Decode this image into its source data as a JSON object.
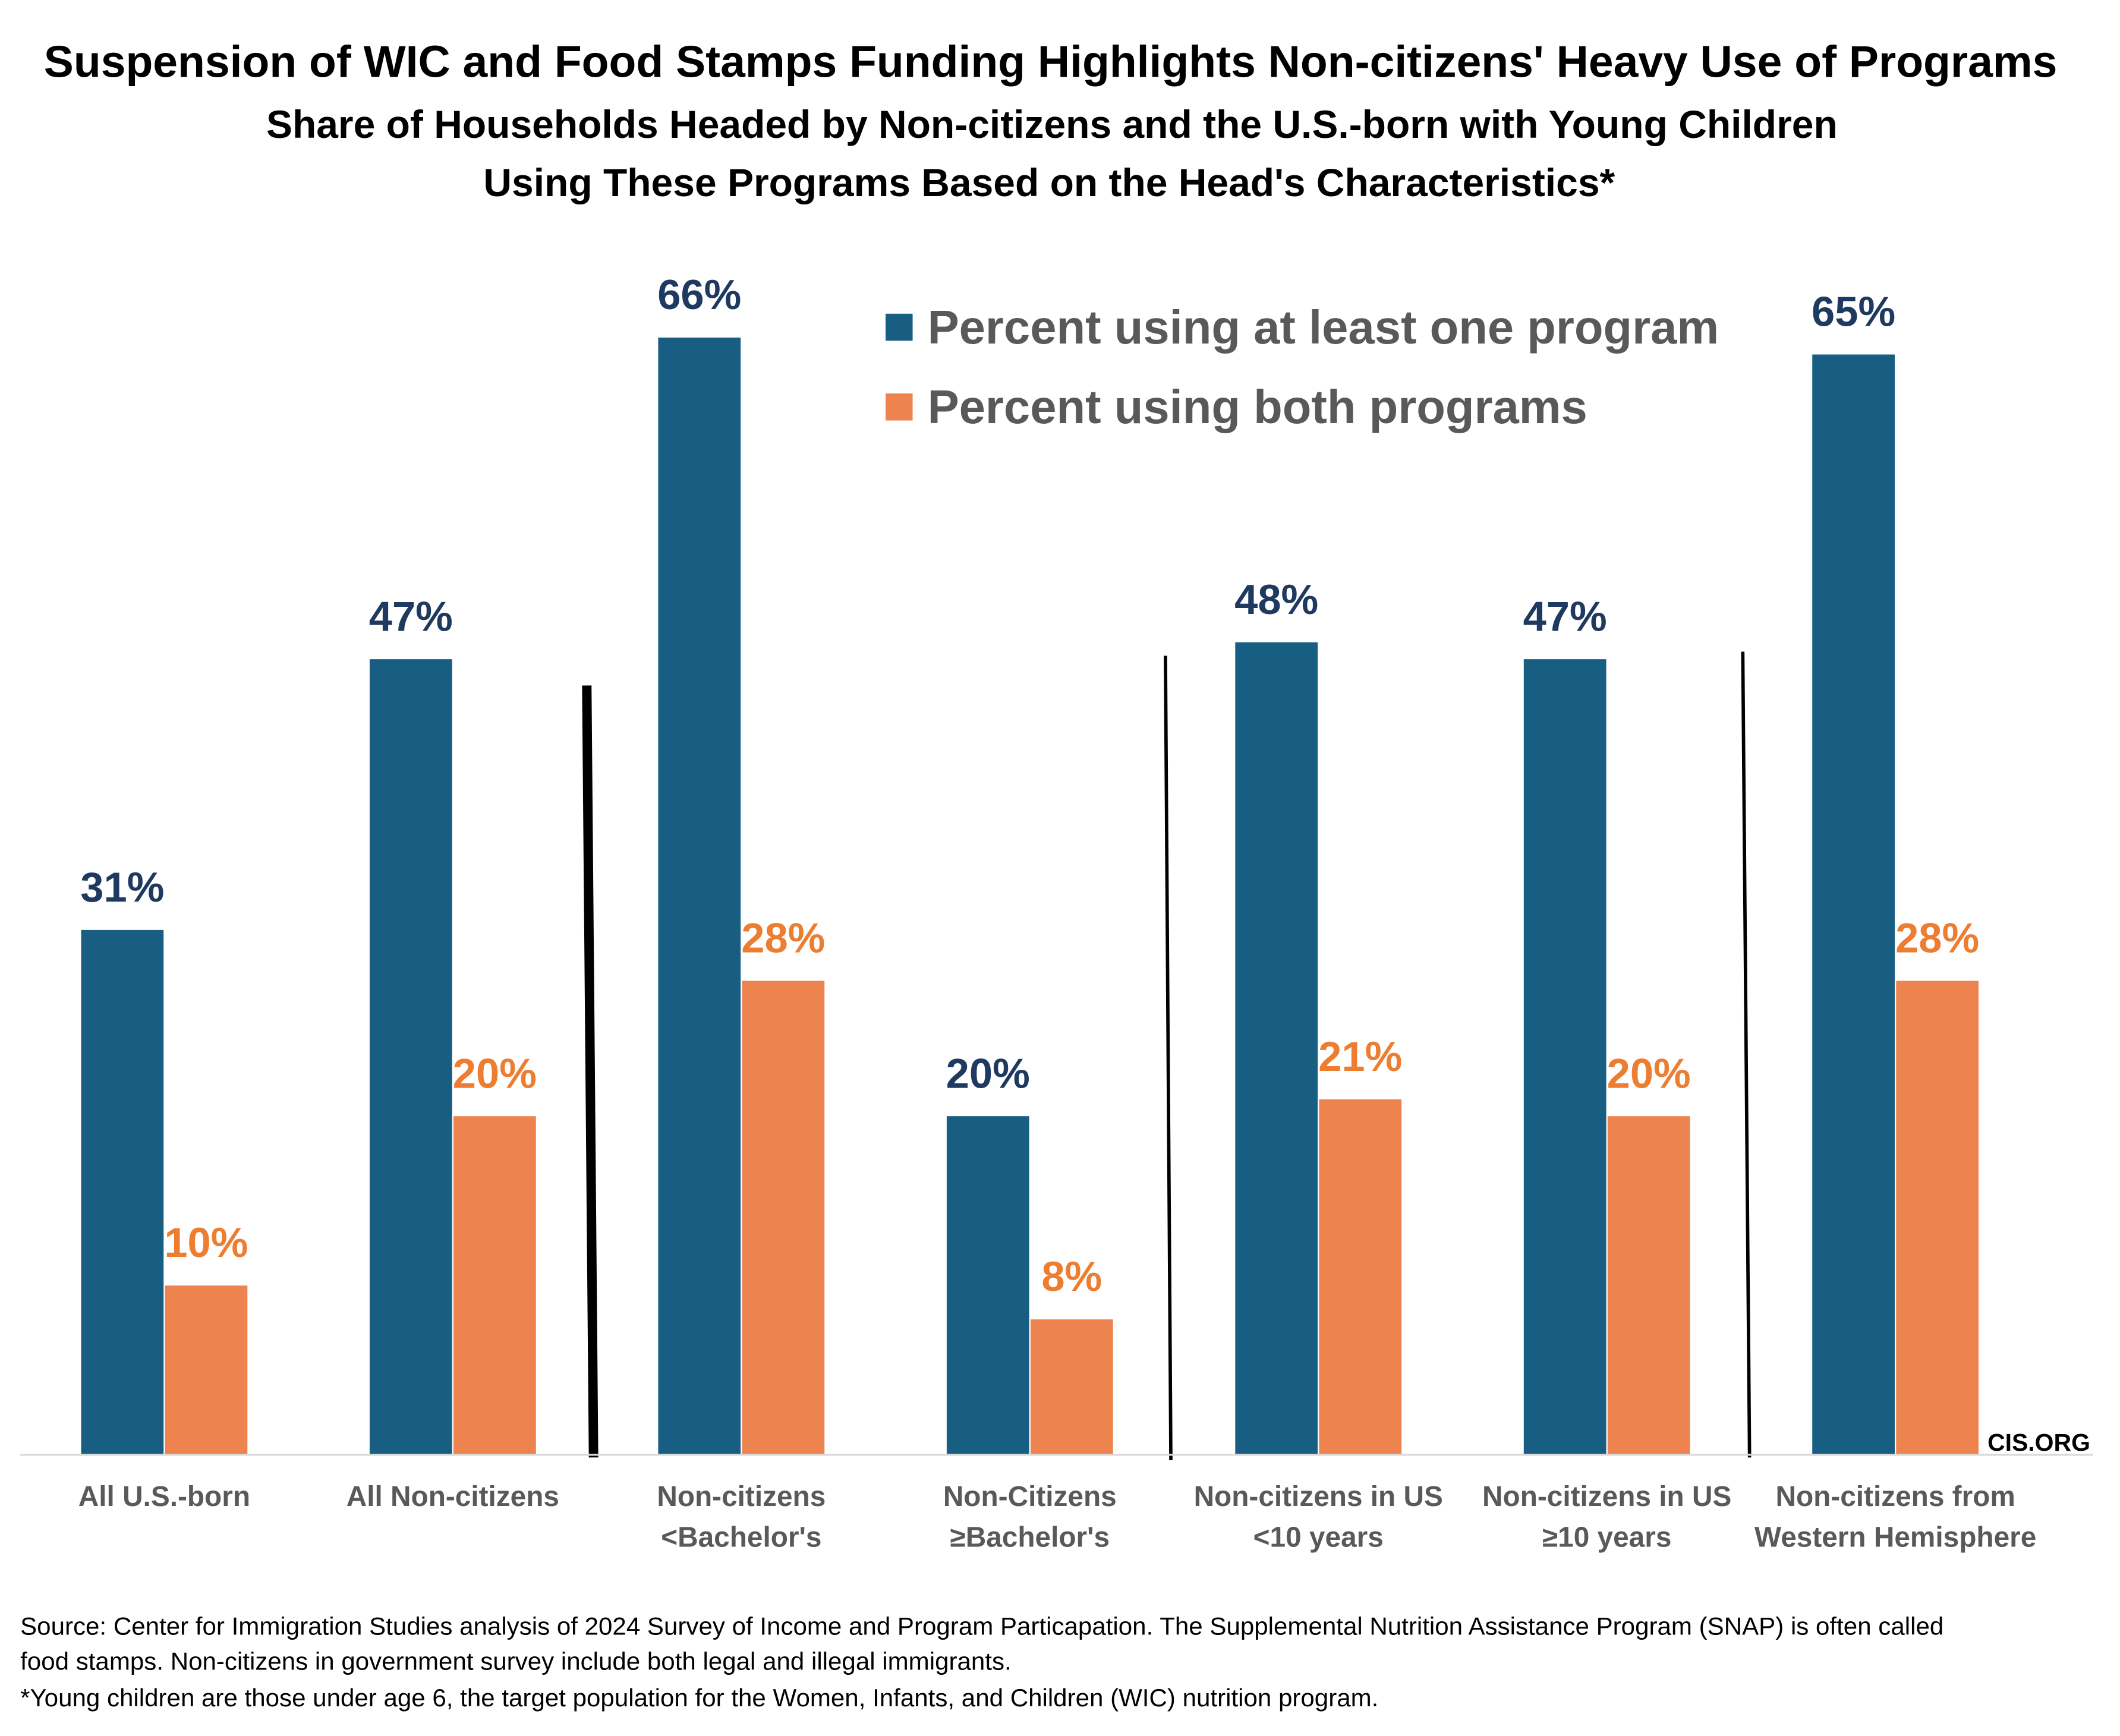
{
  "chart_data": {
    "type": "bar",
    "title": "Suspension of WIC and Food Stamps Funding Highlights Non-citizens' Heavy Use of Programs",
    "subtitle": [
      "Share of Households Headed by Non-citizens and the U.S.-born with Young Children",
      "Using These Programs Based on the Head's Characteristics*"
    ],
    "categories": [
      [
        "All U.S.-born"
      ],
      [
        "All Non-citizens"
      ],
      [
        "Non-citizens",
        "<Bachelor's"
      ],
      [
        "Non-Citizens",
        "≥Bachelor's"
      ],
      [
        "Non-citizens in US",
        "<10 years"
      ],
      [
        "Non-citizens in US",
        "≥10 years"
      ],
      [
        "Non-citizens from",
        "Western Hemisphere"
      ]
    ],
    "series": [
      {
        "name": "Percent using at least one program",
        "color": "#175E82",
        "label_color": "#1F3A60",
        "values": [
          31,
          47,
          66,
          20,
          48,
          47,
          65
        ]
      },
      {
        "name": "Percent using both programs",
        "color": "#ED834E",
        "label_color": "#ED7D31",
        "values": [
          10,
          20,
          28,
          8,
          21,
          20,
          28
        ]
      }
    ],
    "value_suffix": "%",
    "ylim": [
      0,
      70
    ],
    "grid": false,
    "legend_placement": "top-center",
    "group_separators_after": [
      2,
      4,
      6
    ],
    "watermark": "CIS.ORG",
    "footnotes": [
      "Source: Center for Immigration Studies analysis of 2024 Survey of Income and Program Particapation.  The Supplemental Nutrition Assistance Program (SNAP) is often called",
      "food stamps. Non-citizens in government survey include both legal and illegal immigrants.",
      "*Young children are those under age 6, the target population for the Women, Infants, and Children (WIC) nutrition program."
    ]
  }
}
